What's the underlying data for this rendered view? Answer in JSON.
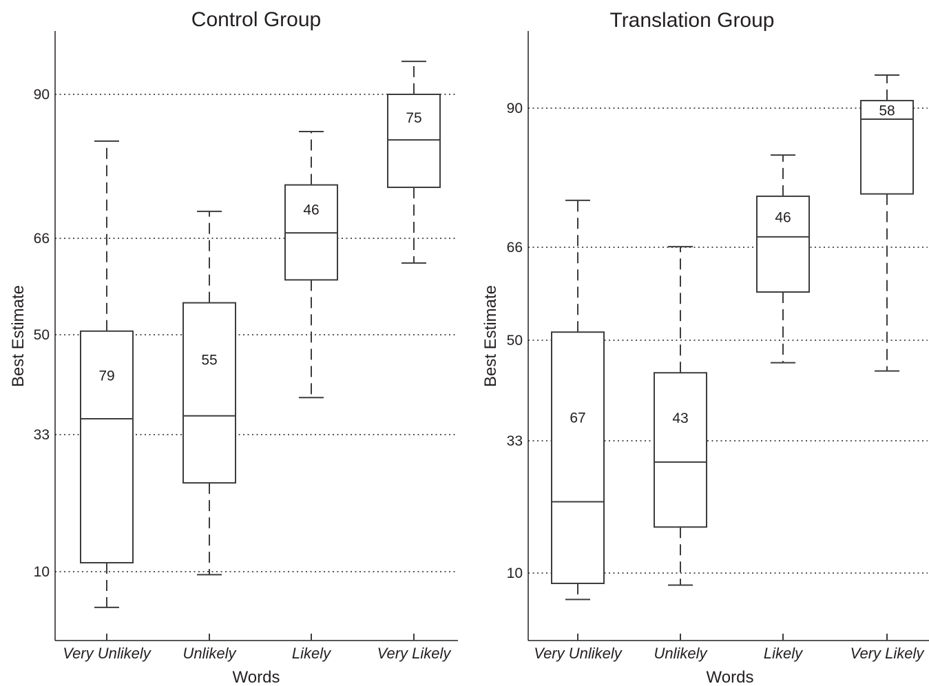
{
  "chart_data": [
    {
      "type": "box",
      "title": "Control Group",
      "xlabel": "Words",
      "ylabel": "Best Estimate",
      "categories": [
        "Very Unlikely",
        "Unlikely",
        "Likely",
        "Very Likely"
      ],
      "yticks": [
        "10",
        "33",
        "50",
        "66",
        "90"
      ],
      "grid": "horizontal dotted lines at y ticks",
      "boxes": [
        {
          "category": "Very Unlikely",
          "whisker_low": 4,
          "q1": 11.5,
          "median": 35.7,
          "q3": 50.6,
          "whisker_high": 82.2,
          "label": "79"
        },
        {
          "category": "Unlikely",
          "whisker_low": 9.5,
          "q1": 24.9,
          "median": 36.2,
          "q3": 55.3,
          "whisker_high": 70.5,
          "label": "55"
        },
        {
          "category": "Likely",
          "whisker_low": 39.3,
          "q1": 59.1,
          "median": 66.9,
          "q3": 74.9,
          "whisker_high": 83.8,
          "label": "46"
        },
        {
          "category": "Very Likely",
          "whisker_low": 61.9,
          "q1": 74.5,
          "median": 82.4,
          "q3": 90,
          "whisker_high": 95.5,
          "label": "75"
        }
      ]
    },
    {
      "type": "box",
      "title": "Translation Group",
      "xlabel": "Words",
      "ylabel": "Best Estimate",
      "categories": [
        "Very Unlikely",
        "Unlikely",
        "Likely",
        "Very Likely"
      ],
      "yticks": [
        "10",
        "33",
        "50",
        "66",
        "90"
      ],
      "grid": "horizontal dotted lines at y ticks",
      "boxes": [
        {
          "category": "Very Unlikely",
          "whisker_low": 5.4,
          "q1": 8.2,
          "median": 22.4,
          "q3": 51.4,
          "whisker_high": 74.1,
          "label": "67"
        },
        {
          "category": "Unlikely",
          "whisker_low": 7.9,
          "q1": 18,
          "median": 29.3,
          "q3": 44.5,
          "whisker_high": 66.1,
          "label": "43"
        },
        {
          "category": "Likely",
          "whisker_low": 46.2,
          "q1": 58.3,
          "median": 67.8,
          "q3": 74.8,
          "whisker_high": 81.9,
          "label": "46"
        },
        {
          "category": "Very Likely",
          "whisker_low": 44.8,
          "q1": 75.2,
          "median": 88.1,
          "q3": 91.3,
          "whisker_high": 95.7,
          "label": "58"
        }
      ]
    }
  ]
}
